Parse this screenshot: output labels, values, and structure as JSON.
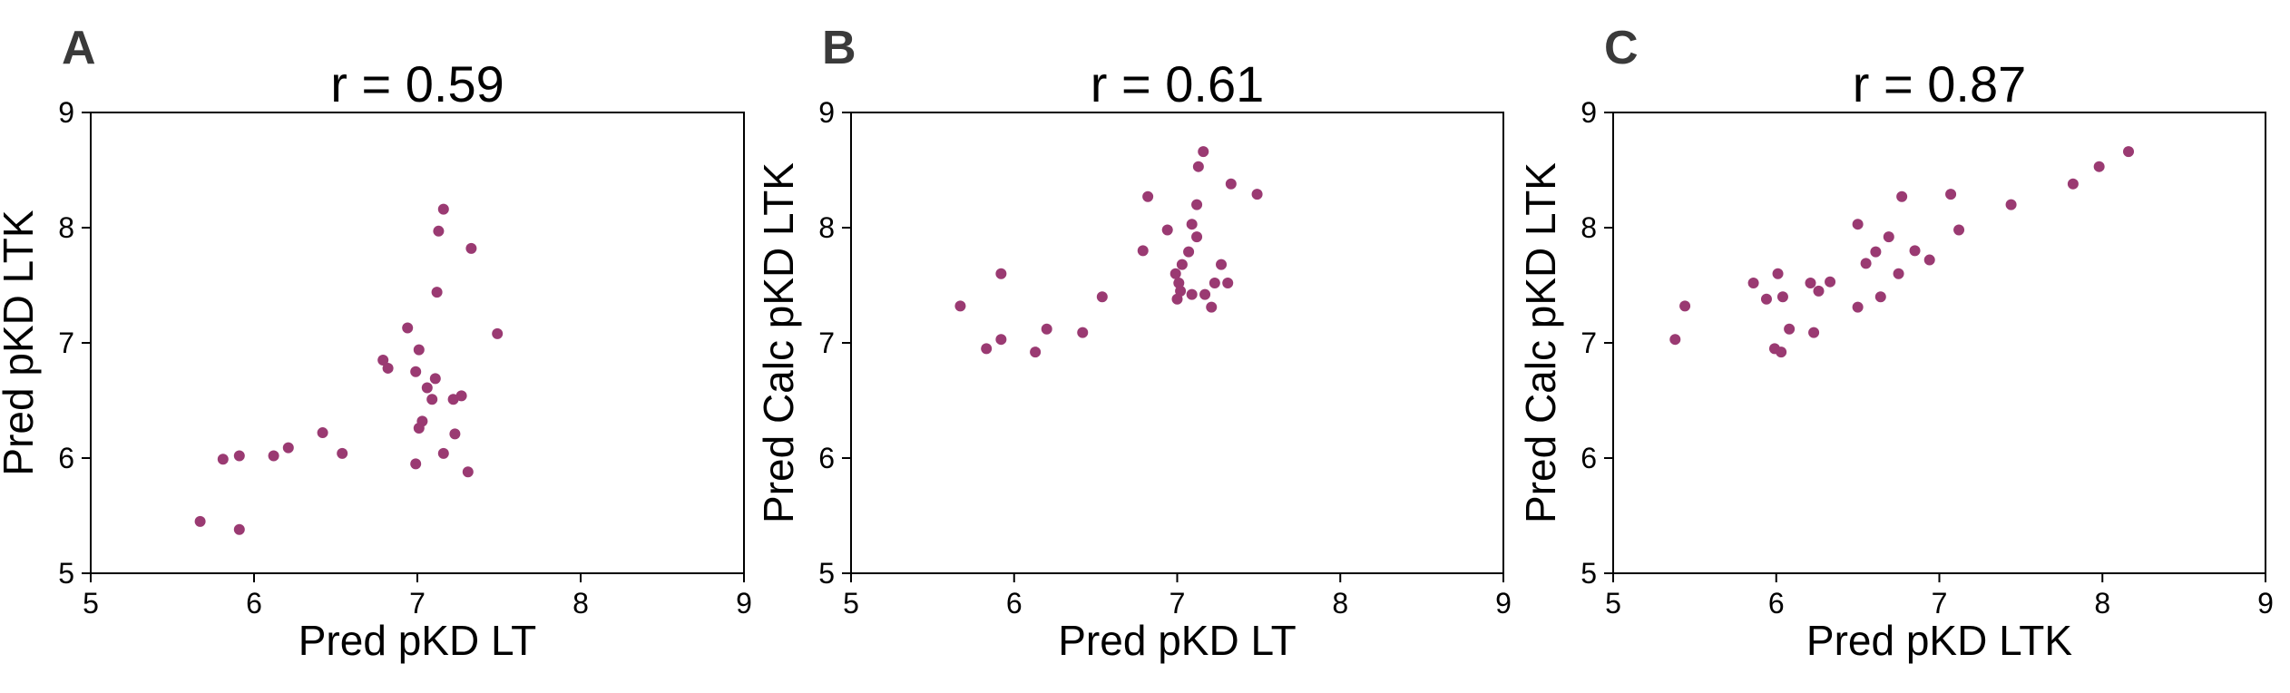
{
  "chart_data": [
    {
      "type": "scatter",
      "panel_label": "A",
      "title": "r = 0.59",
      "xlabel": "Pred pKD LT",
      "ylabel": "Pred pKD LTK",
      "xlim": [
        5,
        9
      ],
      "ylim": [
        5,
        9
      ],
      "xticks": [
        5,
        6,
        7,
        8,
        9
      ],
      "yticks": [
        5,
        6,
        7,
        8,
        9
      ],
      "grid": false,
      "point_color": "#9a3a72",
      "points": [
        {
          "x": 5.67,
          "y": 5.45
        },
        {
          "x": 5.81,
          "y": 5.99
        },
        {
          "x": 5.91,
          "y": 6.02
        },
        {
          "x": 5.91,
          "y": 5.38
        },
        {
          "x": 6.12,
          "y": 6.02
        },
        {
          "x": 6.21,
          "y": 6.09
        },
        {
          "x": 6.42,
          "y": 6.22
        },
        {
          "x": 6.54,
          "y": 6.04
        },
        {
          "x": 6.79,
          "y": 6.85
        },
        {
          "x": 6.82,
          "y": 6.78
        },
        {
          "x": 6.94,
          "y": 7.13
        },
        {
          "x": 6.99,
          "y": 6.75
        },
        {
          "x": 7.01,
          "y": 6.94
        },
        {
          "x": 7.03,
          "y": 6.32
        },
        {
          "x": 7.01,
          "y": 6.26
        },
        {
          "x": 6.99,
          "y": 5.95
        },
        {
          "x": 7.06,
          "y": 6.61
        },
        {
          "x": 7.09,
          "y": 6.51
        },
        {
          "x": 7.11,
          "y": 6.69
        },
        {
          "x": 7.12,
          "y": 7.44
        },
        {
          "x": 7.13,
          "y": 7.97
        },
        {
          "x": 7.16,
          "y": 8.16
        },
        {
          "x": 7.16,
          "y": 6.04
        },
        {
          "x": 7.22,
          "y": 6.51
        },
        {
          "x": 7.23,
          "y": 6.21
        },
        {
          "x": 7.27,
          "y": 6.54
        },
        {
          "x": 7.31,
          "y": 5.88
        },
        {
          "x": 7.33,
          "y": 7.82
        },
        {
          "x": 7.49,
          "y": 7.08
        }
      ]
    },
    {
      "type": "scatter",
      "panel_label": "B",
      "title": "r = 0.61",
      "xlabel": "Pred pKD LT",
      "ylabel": "Pred Calc pKD LTK",
      "xlim": [
        5,
        9
      ],
      "ylim": [
        5,
        9
      ],
      "xticks": [
        5,
        6,
        7,
        8,
        9
      ],
      "yticks": [
        5,
        6,
        7,
        8,
        9
      ],
      "grid": false,
      "point_color": "#9a3a72",
      "points": [
        {
          "x": 5.67,
          "y": 7.32
        },
        {
          "x": 5.83,
          "y": 6.95
        },
        {
          "x": 5.92,
          "y": 7.03
        },
        {
          "x": 5.92,
          "y": 7.6
        },
        {
          "x": 6.13,
          "y": 6.92
        },
        {
          "x": 6.2,
          "y": 7.12
        },
        {
          "x": 6.42,
          "y": 7.09
        },
        {
          "x": 6.54,
          "y": 7.4
        },
        {
          "x": 6.79,
          "y": 7.8
        },
        {
          "x": 6.82,
          "y": 8.27
        },
        {
          "x": 6.94,
          "y": 7.98
        },
        {
          "x": 6.99,
          "y": 7.6
        },
        {
          "x": 7.01,
          "y": 7.52
        },
        {
          "x": 7.0,
          "y": 7.38
        },
        {
          "x": 7.02,
          "y": 7.45
        },
        {
          "x": 7.03,
          "y": 7.68
        },
        {
          "x": 7.07,
          "y": 7.79
        },
        {
          "x": 7.09,
          "y": 8.03
        },
        {
          "x": 7.09,
          "y": 7.42
        },
        {
          "x": 7.12,
          "y": 7.92
        },
        {
          "x": 7.12,
          "y": 8.2
        },
        {
          "x": 7.13,
          "y": 8.53
        },
        {
          "x": 7.16,
          "y": 8.66
        },
        {
          "x": 7.17,
          "y": 7.42
        },
        {
          "x": 7.21,
          "y": 7.31
        },
        {
          "x": 7.23,
          "y": 7.52
        },
        {
          "x": 7.27,
          "y": 7.68
        },
        {
          "x": 7.31,
          "y": 7.52
        },
        {
          "x": 7.33,
          "y": 8.38
        },
        {
          "x": 7.49,
          "y": 8.29
        }
      ]
    },
    {
      "type": "scatter",
      "panel_label": "C",
      "title": "r = 0.87",
      "xlabel": "Pred pKD LTK",
      "ylabel": "Pred Calc pKD LTK",
      "xlim": [
        5,
        9
      ],
      "ylim": [
        5,
        9
      ],
      "xticks": [
        5,
        6,
        7,
        8,
        9
      ],
      "yticks": [
        5,
        6,
        7,
        8,
        9
      ],
      "grid": false,
      "point_color": "#9a3a72",
      "points": [
        {
          "x": 5.38,
          "y": 7.03
        },
        {
          "x": 5.44,
          "y": 7.32
        },
        {
          "x": 5.86,
          "y": 7.52
        },
        {
          "x": 5.94,
          "y": 7.38
        },
        {
          "x": 5.99,
          "y": 6.95
        },
        {
          "x": 6.01,
          "y": 7.6
        },
        {
          "x": 6.03,
          "y": 6.92
        },
        {
          "x": 6.04,
          "y": 7.4
        },
        {
          "x": 6.08,
          "y": 7.12
        },
        {
          "x": 6.21,
          "y": 7.52
        },
        {
          "x": 6.23,
          "y": 7.09
        },
        {
          "x": 6.26,
          "y": 7.45
        },
        {
          "x": 6.33,
          "y": 7.53
        },
        {
          "x": 6.5,
          "y": 8.03
        },
        {
          "x": 6.5,
          "y": 7.31
        },
        {
          "x": 6.55,
          "y": 7.69
        },
        {
          "x": 6.61,
          "y": 7.79
        },
        {
          "x": 6.64,
          "y": 7.4
        },
        {
          "x": 6.69,
          "y": 7.92
        },
        {
          "x": 6.75,
          "y": 7.6
        },
        {
          "x": 6.77,
          "y": 8.27
        },
        {
          "x": 6.85,
          "y": 7.8
        },
        {
          "x": 6.94,
          "y": 7.72
        },
        {
          "x": 7.07,
          "y": 8.29
        },
        {
          "x": 7.12,
          "y": 7.98
        },
        {
          "x": 7.44,
          "y": 8.2
        },
        {
          "x": 7.82,
          "y": 8.38
        },
        {
          "x": 7.98,
          "y": 8.53
        },
        {
          "x": 8.16,
          "y": 8.66
        }
      ]
    }
  ]
}
